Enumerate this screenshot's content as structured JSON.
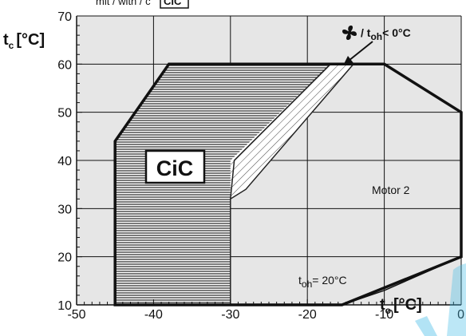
{
  "chart_data": {
    "type": "area",
    "top_note": "mit / with / c",
    "top_note_badge": "CiC",
    "ylabel_main": "t",
    "ylabel_sub": "c",
    "ylabel_unit": "[°C]",
    "xlabel_main": "t",
    "xlabel_sub": "o",
    "xlabel_unit": "[°C]",
    "xlim": [
      -50,
      0
    ],
    "ylim": [
      10,
      70
    ],
    "xticks": [
      "-50",
      "-40",
      "-30",
      "-20",
      "-10",
      "0"
    ],
    "yticks": [
      "10",
      "20",
      "30",
      "40",
      "50",
      "60",
      "70"
    ],
    "grid": true,
    "background": "#e6e6e6",
    "regions": {
      "motor2_envelope": {
        "label": "Motor 2",
        "points": [
          [
            -45,
            10
          ],
          [
            -45,
            44
          ],
          [
            -38,
            60
          ],
          [
            -10,
            60
          ],
          [
            0,
            50
          ],
          [
            0,
            20
          ],
          [
            -15.5,
            10
          ]
        ]
      },
      "cic_region": {
        "label": "CiC",
        "fill": "horizontal-lines",
        "points": [
          [
            -45,
            10
          ],
          [
            -45,
            44
          ],
          [
            -38,
            60
          ],
          [
            -17,
            60
          ],
          [
            -29.5,
            40
          ],
          [
            -30,
            32
          ],
          [
            -30,
            10
          ]
        ]
      },
      "fan_region": {
        "fill": "diagonal-lines",
        "points": [
          [
            -30,
            32
          ],
          [
            -30,
            40
          ],
          [
            -17,
            60
          ],
          [
            -14,
            60
          ],
          [
            -28,
            34
          ]
        ]
      }
    },
    "boundary_line_toh20": {
      "label_main": "t",
      "label_sub": "oh",
      "label_rest": "= 20°C",
      "points": [
        [
          -15.5,
          10
        ],
        [
          -10,
          13
        ],
        [
          0,
          20
        ]
      ]
    },
    "fan_annotation": {
      "icon": "fan-icon",
      "text_prefix": "/ t",
      "text_sub": "oh",
      "text_rest": "< 0°C"
    }
  }
}
